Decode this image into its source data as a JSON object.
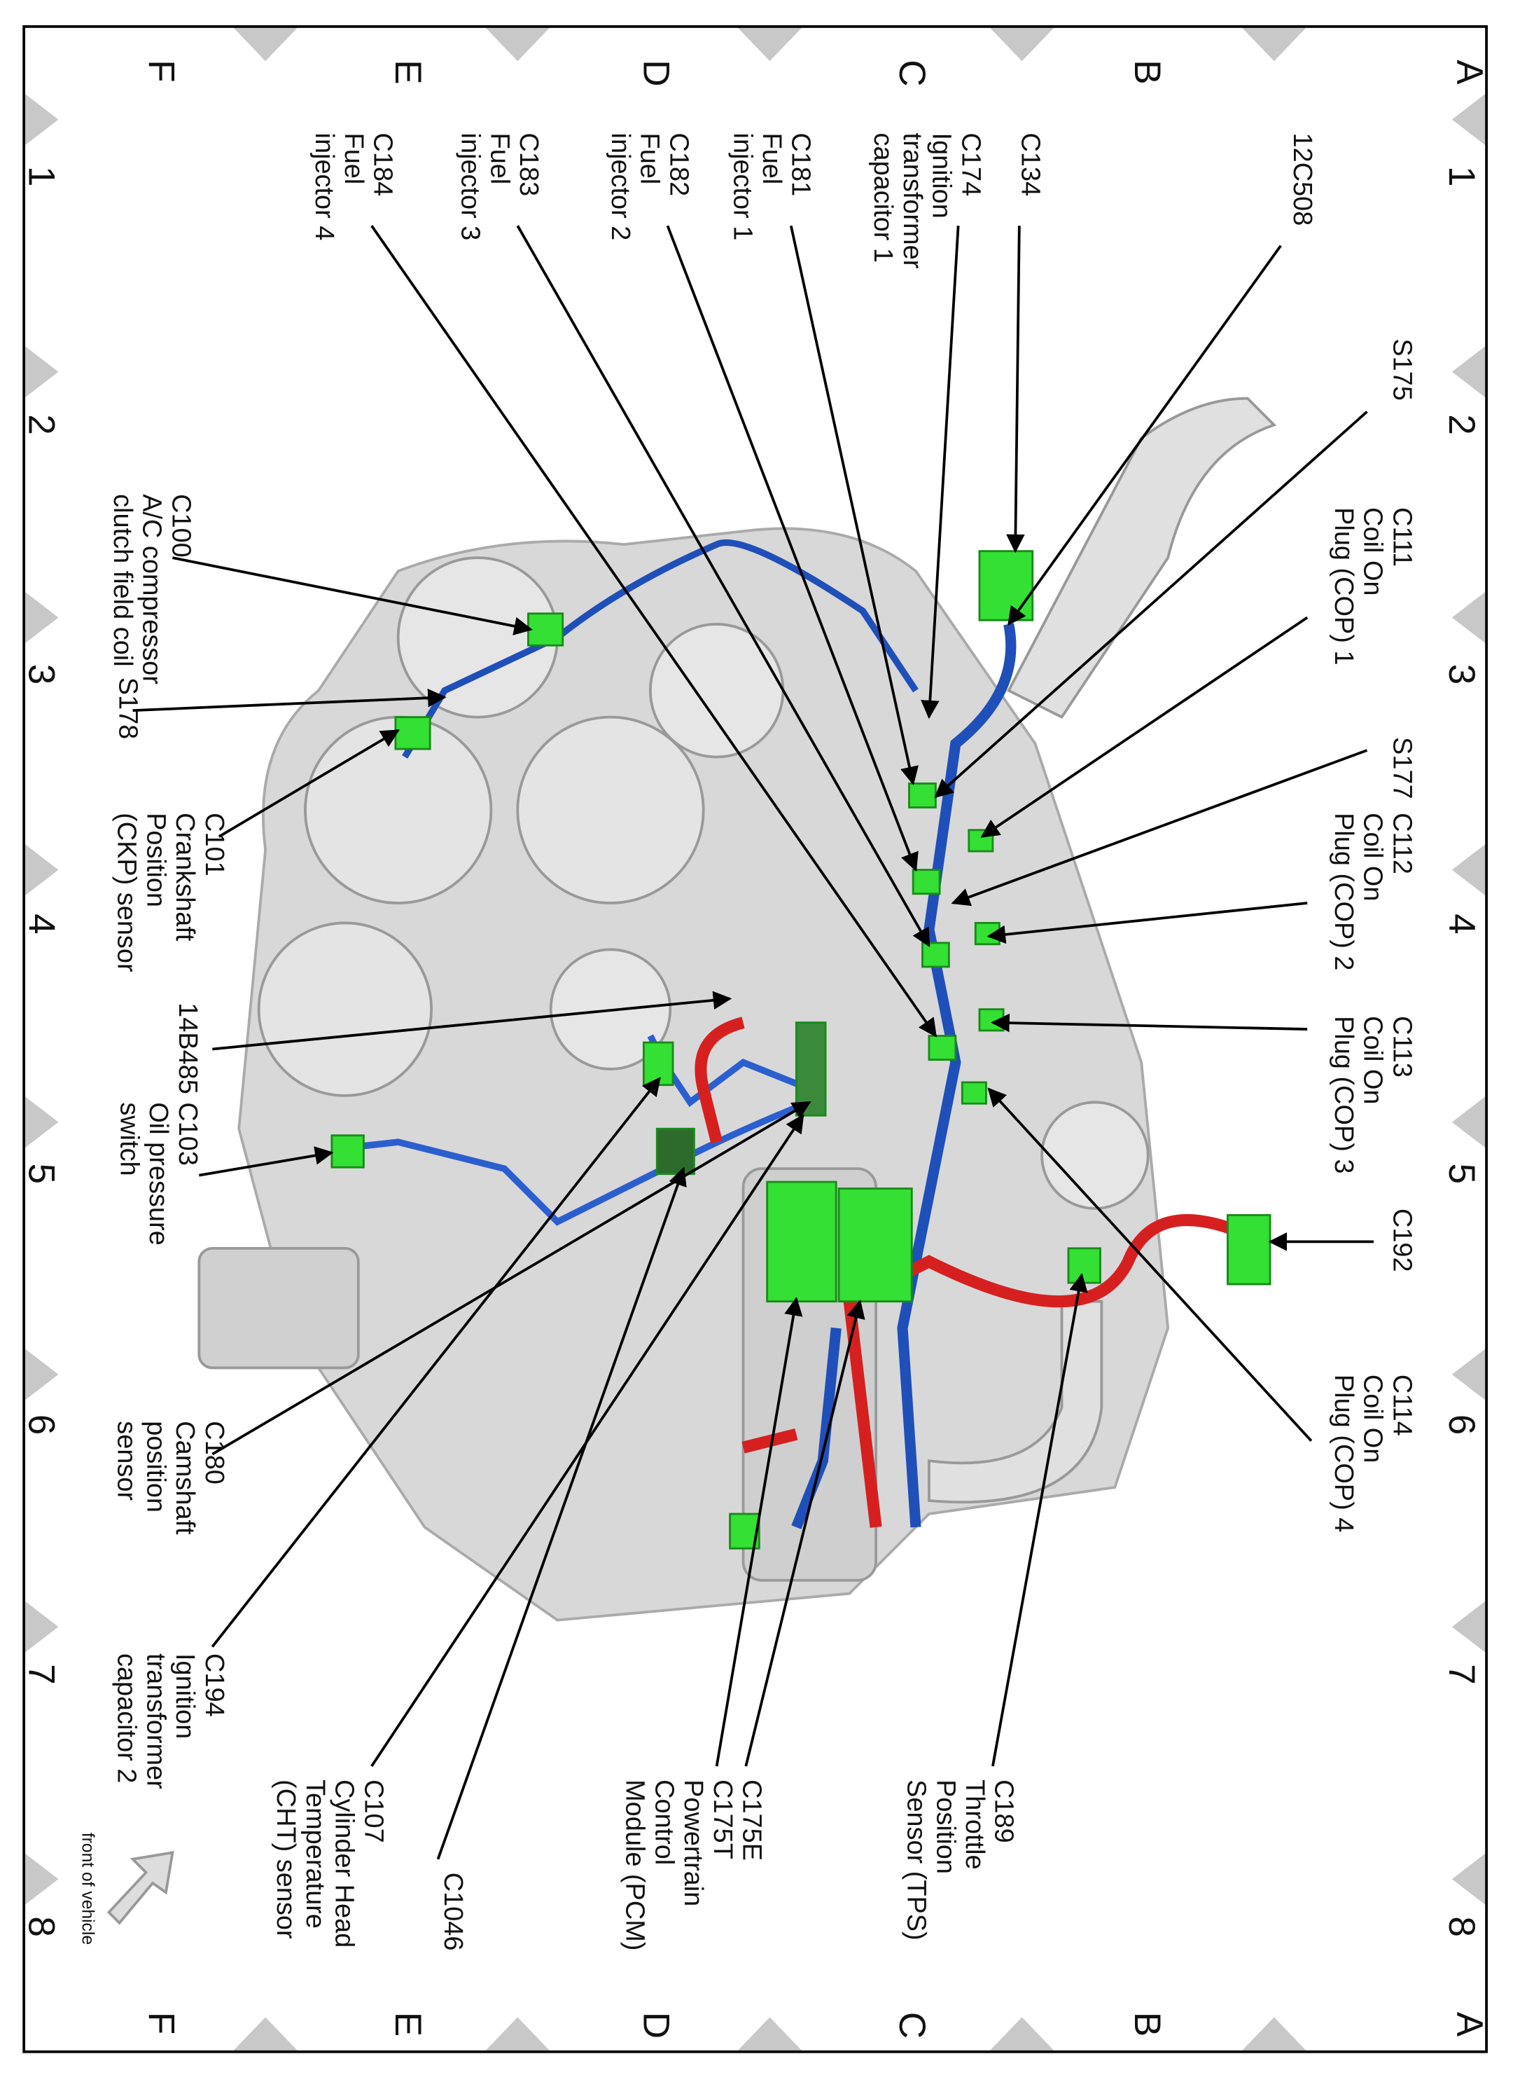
{
  "grid": {
    "rows": [
      "A",
      "B",
      "C",
      "D",
      "E",
      "F"
    ],
    "columns": [
      "1",
      "2",
      "3",
      "4",
      "5",
      "6",
      "7",
      "8"
    ]
  },
  "labels": [
    {
      "lines": [
        "12C508"
      ]
    },
    {
      "lines": [
        "C134"
      ]
    },
    {
      "lines": [
        "C174",
        "Ignition",
        "transformer",
        "capacitor 1"
      ]
    },
    {
      "lines": [
        "C181",
        "Fuel",
        "injector 1"
      ]
    },
    {
      "lines": [
        "C182",
        "Fuel",
        "injector 2"
      ]
    },
    {
      "lines": [
        "C183",
        "Fuel",
        "injector 3"
      ]
    },
    {
      "lines": [
        "C184",
        "Fuel",
        "injector 4"
      ]
    },
    {
      "lines": [
        "S175"
      ]
    },
    {
      "lines": [
        "C111",
        "Coil On",
        "Plug (COP) 1"
      ]
    },
    {
      "lines": [
        "S177"
      ]
    },
    {
      "lines": [
        "C112",
        "Coil On",
        "Plug (COP) 2"
      ]
    },
    {
      "lines": [
        "C113",
        "Coil On",
        "Plug (COP) 3"
      ]
    },
    {
      "lines": [
        "C192"
      ]
    },
    {
      "lines": [
        "C114",
        "Coil On",
        "Plug (COP) 4"
      ]
    },
    {
      "lines": [
        "C189",
        "Throttle",
        "Position",
        "Sensor (TPS)"
      ]
    },
    {
      "lines": [
        "C175E",
        "C175T",
        "Powertrain",
        "Control",
        "Module (PCM)"
      ]
    },
    {
      "lines": [
        "C1046"
      ]
    },
    {
      "lines": [
        "C107",
        "Cylinder Head",
        "Temperature",
        "(CHT) sensor"
      ]
    },
    {
      "lines": [
        "C194",
        "Ignition",
        "transformer",
        "capacitor 2"
      ]
    },
    {
      "lines": [
        "C180",
        "Camshaft",
        "position",
        "sensor"
      ]
    },
    {
      "lines": [
        "C103",
        "Oil pressure",
        "switch"
      ]
    },
    {
      "lines": [
        "14B485"
      ]
    },
    {
      "lines": [
        "C101",
        "Crankshaft",
        "Position",
        "(CKP) sensor"
      ]
    },
    {
      "lines": [
        "S178"
      ]
    },
    {
      "lines": [
        "C100",
        "A/C compressor",
        "clutch field coil"
      ]
    }
  ],
  "footer": {
    "orientation": "front of vehicle"
  }
}
